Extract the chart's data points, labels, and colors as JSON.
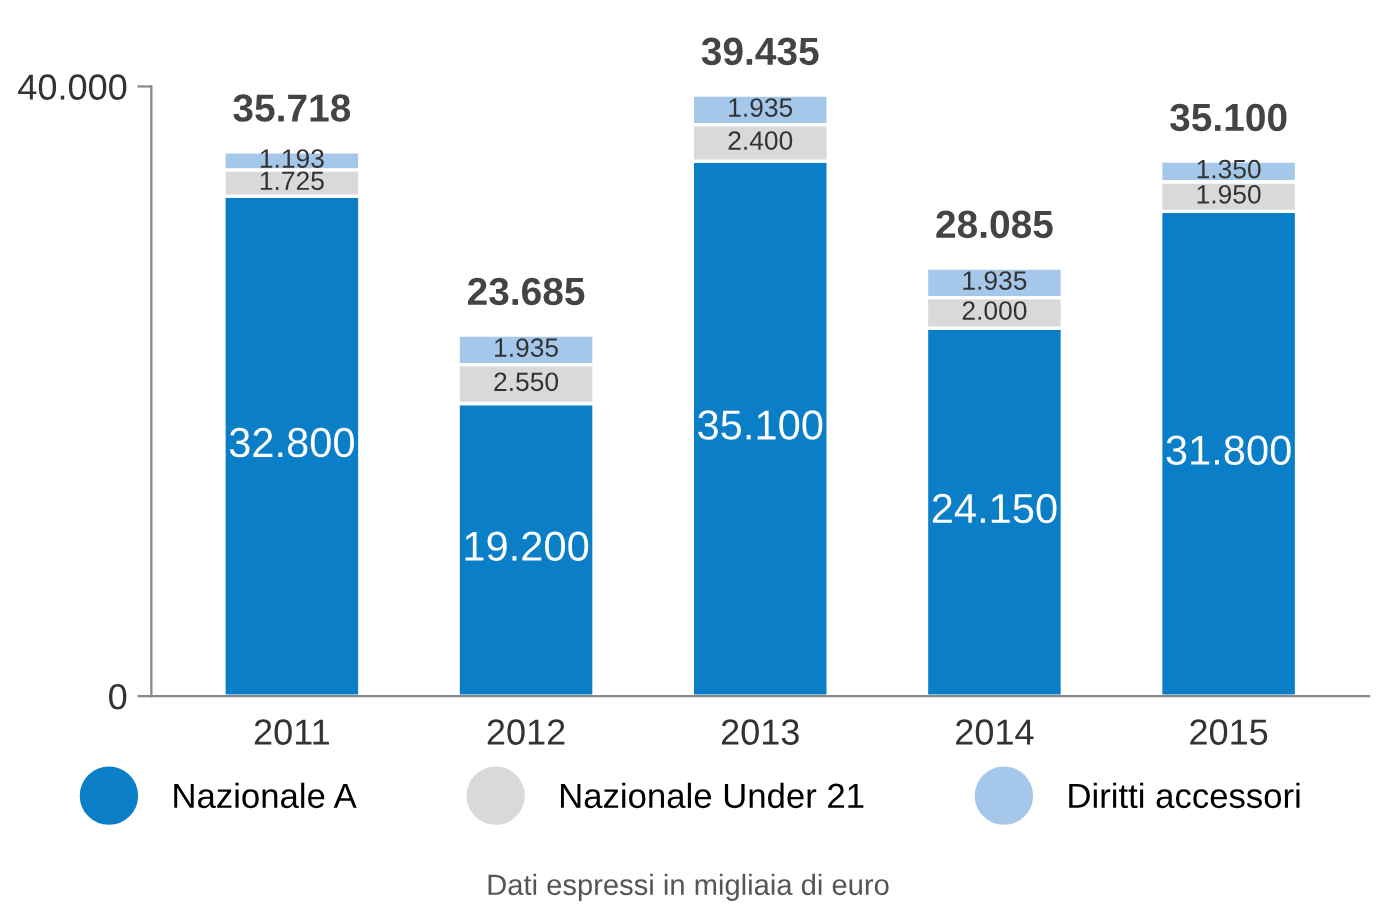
{
  "chart_data": {
    "type": "bar",
    "stacked": true,
    "categories": [
      "2011",
      "2012",
      "2013",
      "2014",
      "2015"
    ],
    "series": [
      {
        "name": "Nazionale A",
        "color": "#0a7fc8",
        "values": [
          32800,
          19200,
          35100,
          24150,
          31800
        ],
        "value_labels": [
          "32.800",
          "19.200",
          "35.100",
          "24.150",
          "31.800"
        ]
      },
      {
        "name": "Nazionale Under 21",
        "color": "#d9d9d9",
        "values": [
          1725,
          2550,
          2400,
          2000,
          1950
        ],
        "value_labels": [
          "1.725",
          "2.550",
          "2.400",
          "2.000",
          "1.950"
        ]
      },
      {
        "name": "Diritti accessori",
        "color": "#a5c8ea",
        "values": [
          1193,
          1935,
          1935,
          1935,
          1350
        ],
        "value_labels": [
          "1.193",
          "1.935",
          "1.935",
          "1.935",
          "1.350"
        ]
      }
    ],
    "totals": [
      "35.718",
      "23.685",
      "39.435",
      "28.085",
      "35.100"
    ],
    "ylim": [
      0,
      40000
    ],
    "yticks": [
      0,
      {
        "value": 40000,
        "label": "40.000"
      }
    ],
    "legend": "bottom",
    "grid": false,
    "annotations": [
      "Dati espressi in migliaia di euro"
    ]
  }
}
